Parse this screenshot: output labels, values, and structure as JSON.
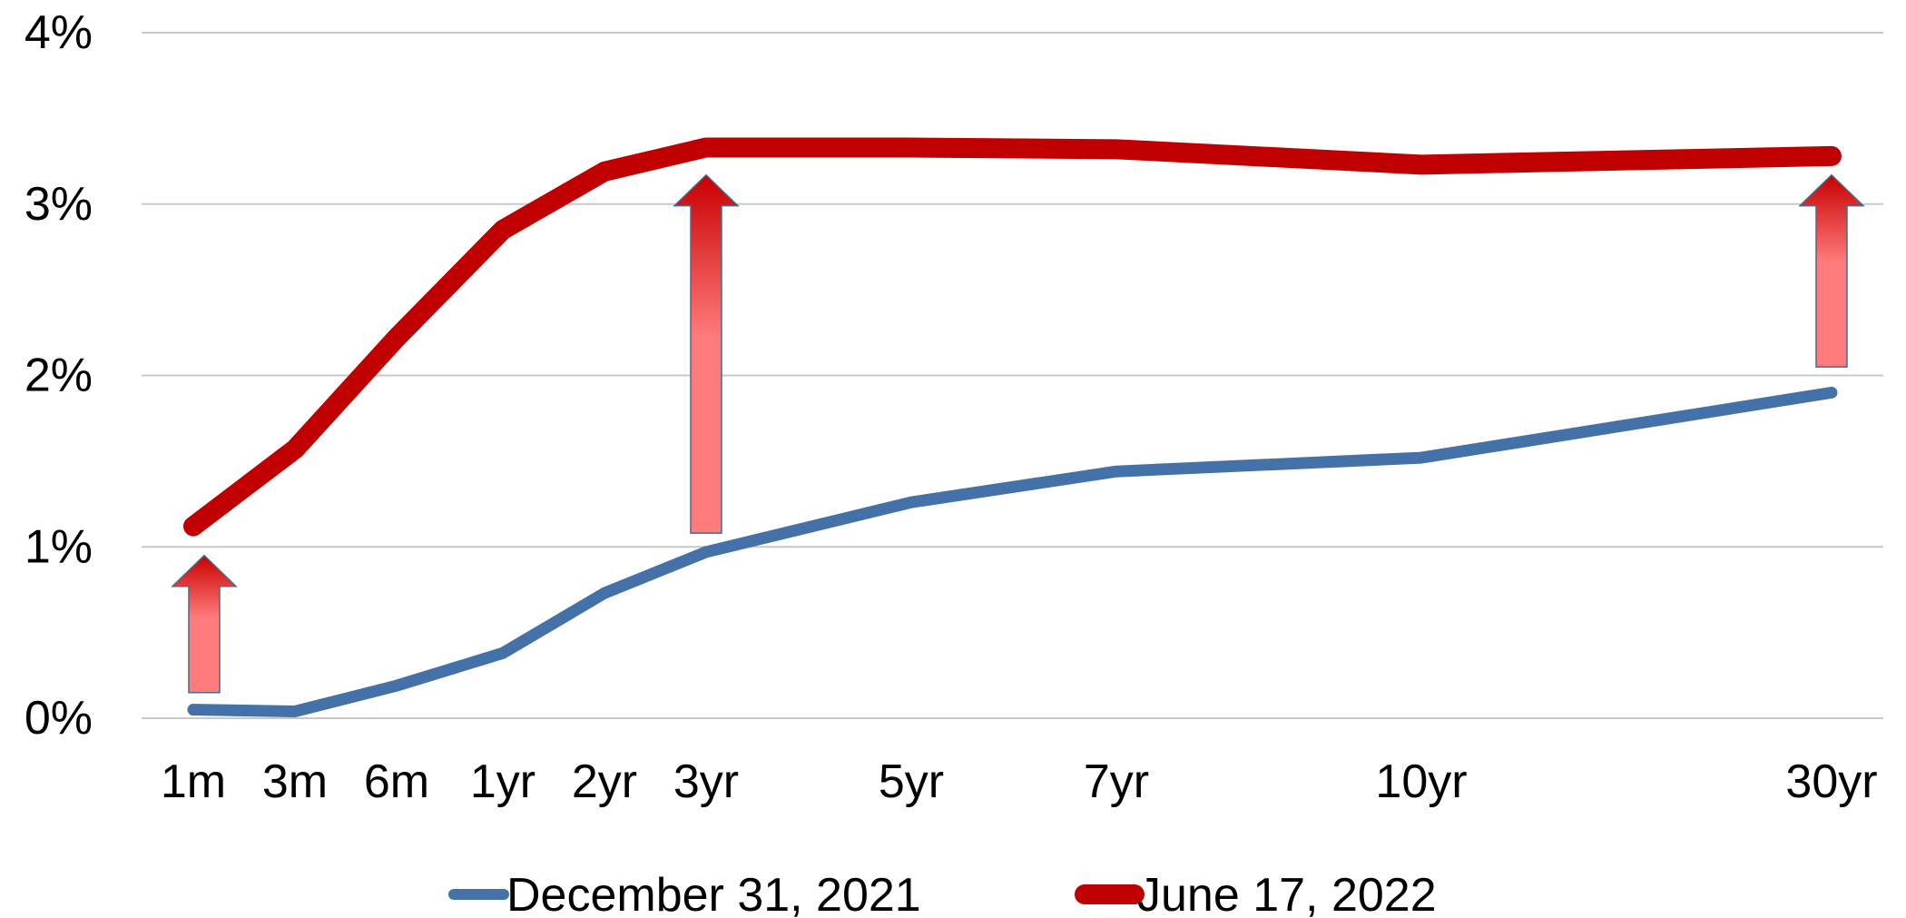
{
  "chart_data": {
    "type": "line",
    "title": "",
    "xlabel": "",
    "ylabel": "",
    "categories": [
      "1m",
      "3m",
      "6m",
      "1yr",
      "2yr",
      "3yr",
      "5yr",
      "7yr",
      "10yr",
      "30yr"
    ],
    "ylim": [
      0,
      4
    ],
    "y_ticks": [
      "0%",
      "1%",
      "2%",
      "3%",
      "4%"
    ],
    "grid": "horizontal",
    "legend_position": "bottom",
    "series": [
      {
        "name": "December 31, 2021",
        "color": "#4472a8",
        "values": [
          0.05,
          0.04,
          0.19,
          0.38,
          0.73,
          0.97,
          1.26,
          1.44,
          1.52,
          1.9
        ]
      },
      {
        "name": "June 17, 2022",
        "color": "#c00000",
        "values": [
          1.12,
          1.57,
          2.22,
          2.85,
          3.19,
          3.33,
          3.33,
          3.32,
          3.23,
          3.28
        ]
      }
    ],
    "annotations": [
      {
        "type": "arrow",
        "category": "1m",
        "from": 0.15,
        "to": 0.95,
        "color": "#ff7777"
      },
      {
        "type": "arrow",
        "category": "3yr",
        "from": 1.08,
        "to": 3.17,
        "color": "#ff7777"
      },
      {
        "type": "arrow",
        "category": "30yr",
        "from": 2.05,
        "to": 3.17,
        "color": "#ff7777"
      }
    ]
  }
}
